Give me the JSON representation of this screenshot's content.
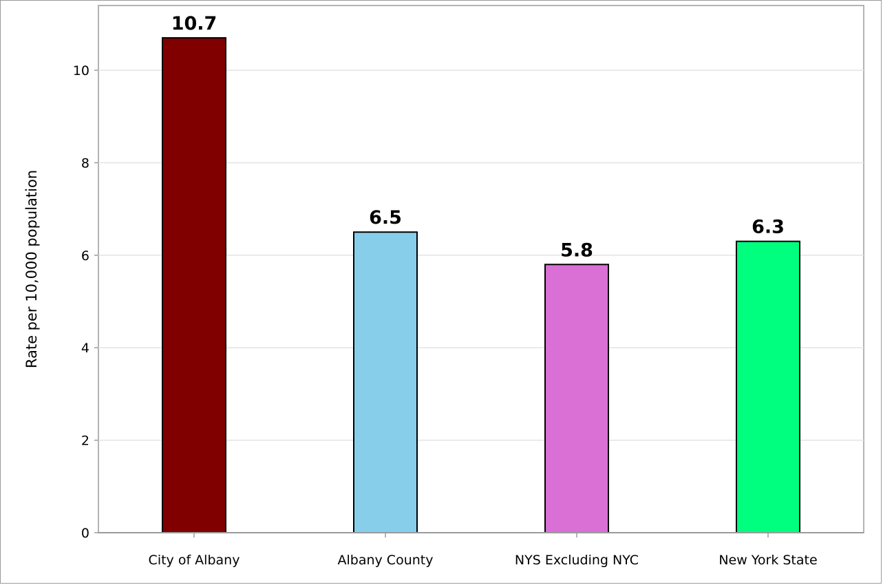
{
  "chart_data": {
    "type": "bar",
    "title": "",
    "xlabel": "",
    "ylabel": "Rate per 10,000 population",
    "categories": [
      "City of Albany",
      "Albany County",
      "NYS Excluding NYC",
      "New York State"
    ],
    "values": [
      10.7,
      6.5,
      5.8,
      6.3
    ],
    "data_labels": [
      "10.7",
      "6.5",
      "5.8",
      "6.3"
    ],
    "colors": [
      "#800000",
      "#87CEEB",
      "#DA70D6",
      "#00FF7F"
    ],
    "ylim": [
      0,
      11.4
    ],
    "yticks": [
      0,
      2,
      4,
      6,
      8,
      10
    ],
    "ytick_labels": [
      "0",
      "2",
      "4",
      "6",
      "8",
      "10"
    ],
    "grid": true,
    "legend": "none"
  }
}
